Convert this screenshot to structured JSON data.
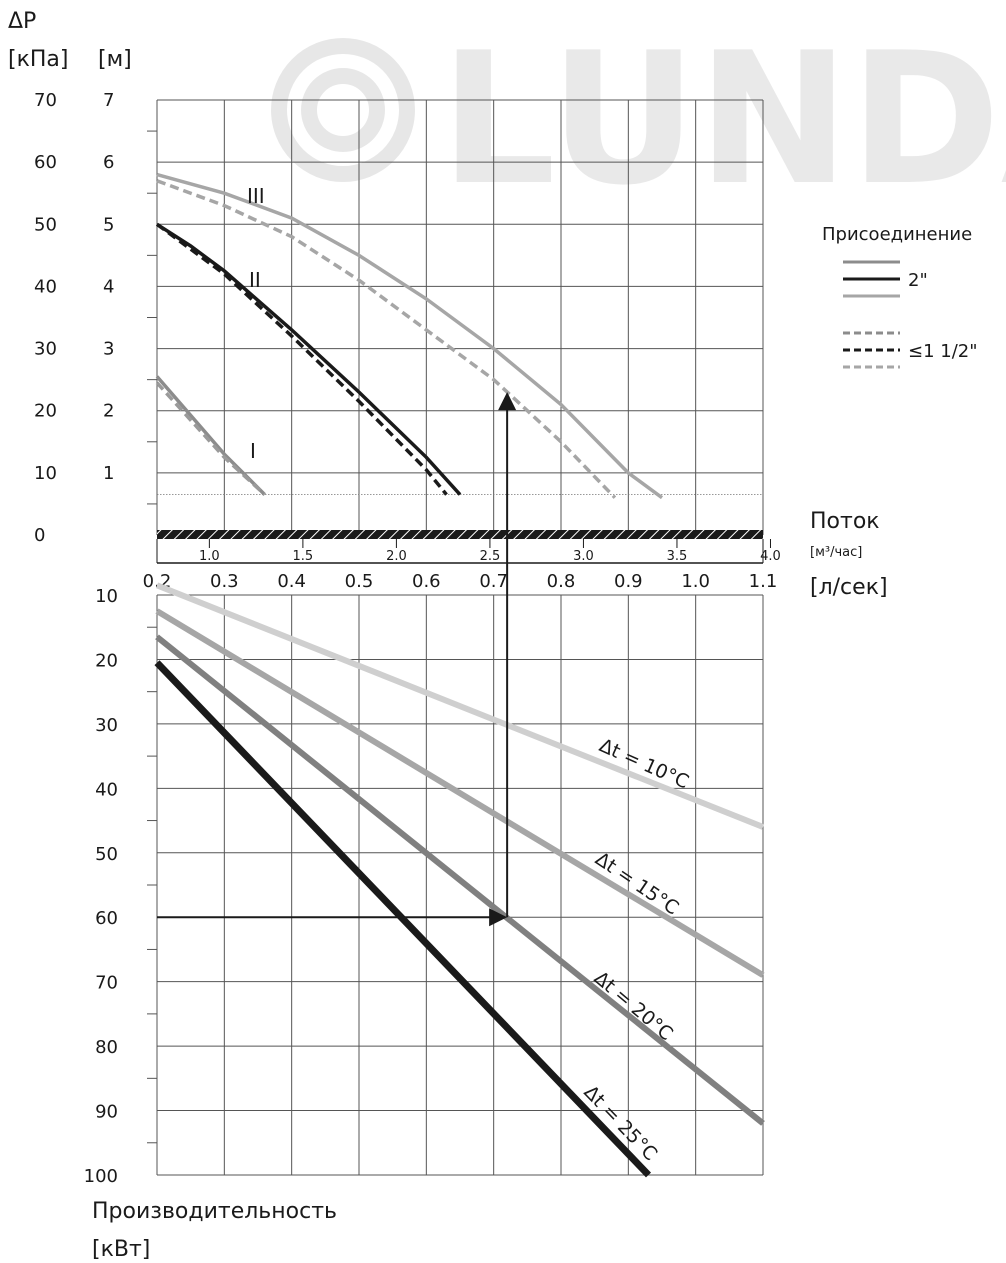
{
  "brand": {
    "watermark": "LUNDA"
  },
  "chart_data": [
    {
      "type": "line",
      "name_ids": [
        "pump-curves"
      ],
      "ylabel": [
        "ΔP",
        "[кПа]",
        "[м]"
      ],
      "y_ticks_kpa": [
        "70",
        "60",
        "50",
        "40",
        "30",
        "20",
        "10",
        "0"
      ],
      "y_ticks_m": [
        "7",
        "6",
        "5",
        "4",
        "3",
        "2",
        "1"
      ],
      "x_label": "Поток",
      "x_unit_m3h": "[м³/час]",
      "x_unit_ls": "[л/сек]",
      "x_ticks_ls": [
        "0.2",
        "0.3",
        "0.4",
        "0.5",
        "0.6",
        "0.7",
        "0.8",
        "0.9",
        "1.0",
        "1.1"
      ],
      "x_ticks_m3h": [
        "1.0",
        "1.5",
        "2.0",
        "2.5",
        "3.0",
        "3.5",
        "4.0"
      ],
      "xlim_ls": [
        0.2,
        1.1
      ],
      "ylim_kpa": [
        0,
        70
      ],
      "grid": true,
      "legend": {
        "title": "Присоединение",
        "placement": "right",
        "entries": [
          {
            "label": "2\"",
            "style": "solid"
          },
          {
            "label": "≤1 1/2\"",
            "style": "dashed"
          }
        ]
      },
      "series": [
        {
          "name": "III",
          "connection": "2\"",
          "style": "solid",
          "color": "#a6a6a6",
          "x": [
            0.2,
            0.3,
            0.4,
            0.5,
            0.6,
            0.7,
            0.8,
            0.9,
            0.95
          ],
          "y": [
            58,
            55,
            51,
            45,
            38,
            30,
            21,
            10,
            6
          ]
        },
        {
          "name": "III",
          "connection": "≤1 1/2\"",
          "style": "dashed",
          "color": "#a6a6a6",
          "x": [
            0.2,
            0.3,
            0.4,
            0.5,
            0.6,
            0.7,
            0.8,
            0.88
          ],
          "y": [
            57,
            53,
            48,
            41,
            33,
            25,
            15,
            6
          ]
        },
        {
          "name": "II",
          "connection": "2\"",
          "style": "solid",
          "color": "#1a1a1a",
          "x": [
            0.2,
            0.25,
            0.3,
            0.4,
            0.5,
            0.6,
            0.65
          ],
          "y": [
            50,
            46.5,
            42.5,
            33,
            23,
            12.5,
            6.5
          ]
        },
        {
          "name": "II",
          "connection": "≤1 1/2\"",
          "style": "dashed",
          "color": "#1a1a1a",
          "x": [
            0.2,
            0.3,
            0.4,
            0.5,
            0.6,
            0.63
          ],
          "y": [
            50,
            42,
            32,
            21.5,
            10.5,
            6.5
          ]
        },
        {
          "name": "I",
          "connection": "2\"",
          "style": "solid",
          "color": "#8c8c8c",
          "x": [
            0.2,
            0.3,
            0.36
          ],
          "y": [
            25.5,
            13,
            6.5
          ]
        },
        {
          "name": "I",
          "connection": "≤1 1/2\"",
          "style": "dashed",
          "color": "#9a9a9a",
          "x": [
            0.2,
            0.3,
            0.36
          ],
          "y": [
            24.5,
            12.5,
            6.5
          ]
        }
      ],
      "reference_line_kpa": 6.5,
      "example_flow_ls": 0.72,
      "example_head_kpa": 23
    },
    {
      "type": "line",
      "ylabel": [
        "Производительность",
        "[кВт]"
      ],
      "y_ticks": [
        "10",
        "20",
        "30",
        "40",
        "50",
        "60",
        "70",
        "80",
        "90",
        "100"
      ],
      "ylim": [
        10,
        100
      ],
      "xlim_ls": [
        0.2,
        1.1
      ],
      "grid": true,
      "series": [
        {
          "name": "Δt = 10°C",
          "color": "#cfcfcf",
          "x": [
            0.2,
            1.1
          ],
          "y": [
            8.5,
            46
          ]
        },
        {
          "name": "Δt = 15°C",
          "color": "#a6a6a6",
          "x": [
            0.2,
            1.1
          ],
          "y": [
            12.5,
            69
          ]
        },
        {
          "name": "Δt = 20°C",
          "color": "#808080",
          "x": [
            0.2,
            1.1
          ],
          "y": [
            16.5,
            92
          ]
        },
        {
          "name": "Δt = 25°C",
          "color": "#1a1a1a",
          "x": [
            0.2,
            0.93
          ],
          "y": [
            20.5,
            100
          ]
        }
      ],
      "example_flow_ls": 0.72,
      "example_power_kw": 60
    }
  ]
}
